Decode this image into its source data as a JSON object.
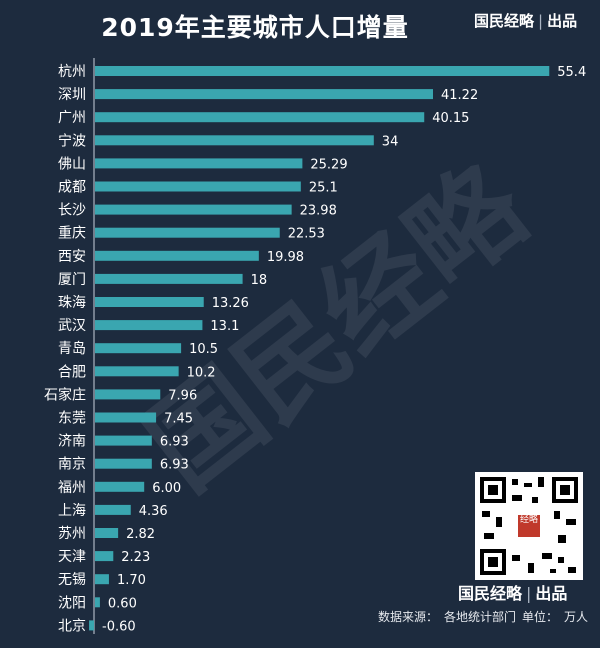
{
  "header": {
    "title": "2019年主要城市人口增量",
    "brand": "国民经略",
    "brand_sep": "|",
    "brand_suffix": "出品"
  },
  "watermark": "国民经略",
  "qr": {
    "center_text": "经略"
  },
  "footer": {
    "brand": "国民经略",
    "brand_sep": "|",
    "brand_suffix": "出品",
    "source_label": "数据来源：",
    "source_value": "各地统计部门",
    "unit_label": "单位：",
    "unit_value": "万人"
  },
  "colors": {
    "background": "#1d2b3e",
    "bar": "#3aa6b0",
    "text": "#ffffff"
  },
  "chart_data": {
    "type": "bar",
    "orientation": "horizontal",
    "title": "2019年主要城市人口增量",
    "xlabel": "",
    "ylabel": "",
    "unit": "万人",
    "xlim": [
      -1,
      56
    ],
    "grid": false,
    "categories": [
      "杭州",
      "深圳",
      "广州",
      "宁波",
      "佛山",
      "成都",
      "长沙",
      "重庆",
      "西安",
      "厦门",
      "珠海",
      "武汉",
      "青岛",
      "合肥",
      "石家庄",
      "东莞",
      "济南",
      "南京",
      "福州",
      "上海",
      "苏州",
      "天津",
      "无锡",
      "沈阳",
      "北京"
    ],
    "values": [
      55.4,
      41.22,
      40.15,
      34,
      25.29,
      25.1,
      23.98,
      22.53,
      19.98,
      18,
      13.26,
      13.1,
      10.5,
      10.2,
      7.96,
      7.45,
      6.93,
      6.93,
      6.0,
      4.36,
      2.82,
      2.23,
      1.7,
      0.6,
      -0.6
    ],
    "value_labels": [
      "55.4",
      "41.22",
      "40.15",
      "34",
      "25.29",
      "25.1",
      "23.98",
      "22.53",
      "19.98",
      "18",
      "13.26",
      "13.1",
      "10.5",
      "10.2",
      "7.96",
      "7.45",
      "6.93",
      "6.93",
      "6.00",
      "4.36",
      "2.82",
      "2.23",
      "1.70",
      "0.60",
      "-0.60"
    ]
  }
}
